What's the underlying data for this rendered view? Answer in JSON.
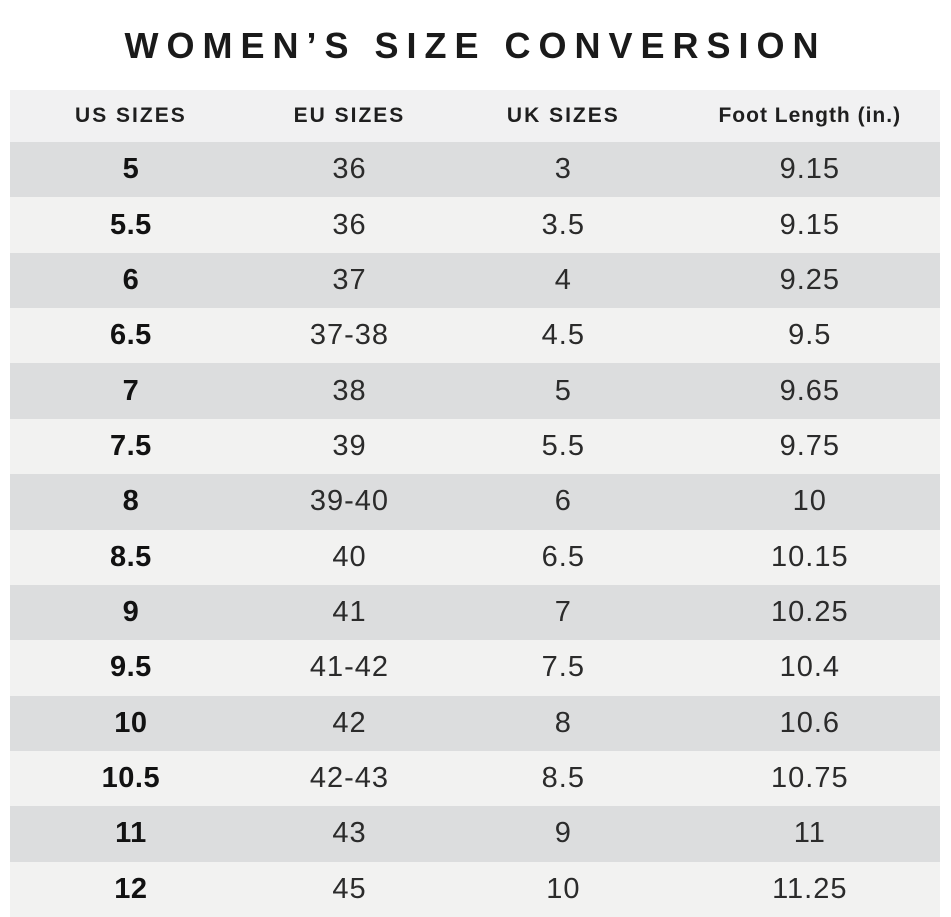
{
  "title": "WOMEN’S SIZE CONVERSION",
  "chart_data": {
    "type": "table",
    "title": "WOMEN’S SIZE CONVERSION",
    "columns": [
      "US SIZES",
      "EU SIZES",
      "UK SIZES",
      "Foot Length (in.)"
    ],
    "rows": [
      [
        "5",
        "36",
        "3",
        "9.15"
      ],
      [
        "5.5",
        "36",
        "3.5",
        "9.15"
      ],
      [
        "6",
        "37",
        "4",
        "9.25"
      ],
      [
        "6.5",
        "37-38",
        "4.5",
        "9.5"
      ],
      [
        "7",
        "38",
        "5",
        "9.65"
      ],
      [
        "7.5",
        "39",
        "5.5",
        "9.75"
      ],
      [
        "8",
        "39-40",
        "6",
        "10"
      ],
      [
        "8.5",
        "40",
        "6.5",
        "10.15"
      ],
      [
        "9",
        "41",
        "7",
        "10.25"
      ],
      [
        "9.5",
        "41-42",
        "7.5",
        "10.4"
      ],
      [
        "10",
        "42",
        "8",
        "10.6"
      ],
      [
        "10.5",
        "42-43",
        "8.5",
        "10.75"
      ],
      [
        "11",
        "43",
        "9",
        "11"
      ],
      [
        "12",
        "45",
        "10",
        "11.25"
      ]
    ],
    "layout": {
      "row_alternation_starts_with": "dark",
      "grid": "off",
      "legend": "none"
    }
  },
  "colors": {
    "page_background": "#ffffff",
    "header_background": "#f1f1f2",
    "row_dark": "#dcddde",
    "row_light": "#f2f2f1",
    "title_text": "#1a1a1a",
    "cell_text": "#2b2b2b"
  }
}
